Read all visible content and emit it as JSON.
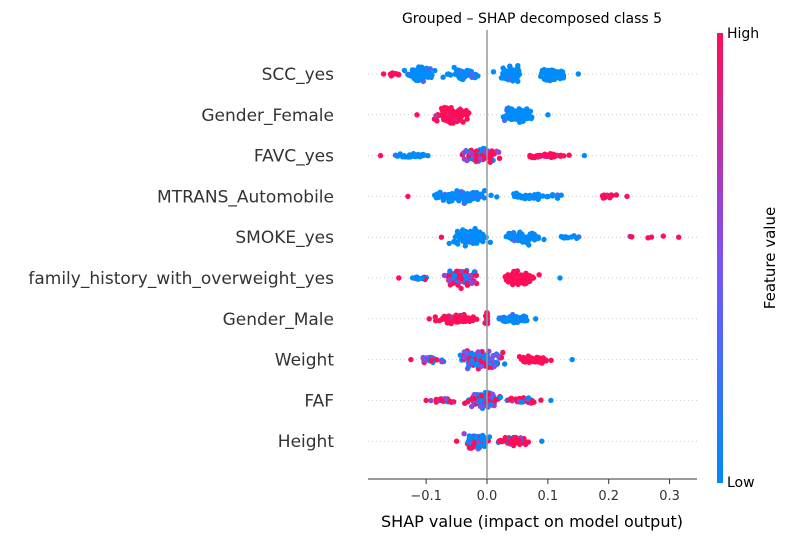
{
  "chart_data": {
    "type": "scatter",
    "title": "Grouped – SHAP decomposed class 5",
    "xlabel": "SHAP value (impact on model output)",
    "xlim": [
      -0.2,
      0.345
    ],
    "xticks": [
      {
        "value": -0.1,
        "label": "−0.1"
      },
      {
        "value": 0.0,
        "label": "0.0"
      },
      {
        "value": 0.1,
        "label": "0.1"
      },
      {
        "value": 0.2,
        "label": "0.2"
      },
      {
        "value": 0.3,
        "label": "0.3"
      }
    ],
    "colorbar": {
      "label": "Feature value",
      "high_label": "High",
      "low_label": "Low",
      "high_color": "#ff0d57",
      "low_color": "#008bfb"
    },
    "zero_line": true,
    "features": [
      {
        "name": "SCC_yes",
        "min": -0.17,
        "max": 0.15,
        "clusters": [
          {
            "center": -0.11,
            "width": 0.04,
            "count": 60,
            "color": "low",
            "spread": 13
          },
          {
            "center": -0.04,
            "width": 0.035,
            "count": 50,
            "color": "low",
            "spread": 12
          },
          {
            "center": 0.04,
            "width": 0.035,
            "count": 55,
            "color": "low",
            "spread": 14
          },
          {
            "center": 0.11,
            "width": 0.035,
            "count": 50,
            "color": "low",
            "spread": 12
          },
          {
            "center": -0.15,
            "width": 0.02,
            "count": 8,
            "color": "high",
            "spread": 4
          }
        ]
      },
      {
        "name": "Gender_Female",
        "min": -0.115,
        "max": 0.1,
        "clusters": [
          {
            "center": -0.06,
            "width": 0.045,
            "count": 110,
            "color": "high",
            "spread": 13
          },
          {
            "center": 0.05,
            "width": 0.04,
            "count": 90,
            "color": "low",
            "spread": 13
          }
        ]
      },
      {
        "name": "FAVC_yes",
        "min": -0.175,
        "max": 0.16,
        "clusters": [
          {
            "center": -0.01,
            "width": 0.05,
            "count": 90,
            "color": "mixhigh",
            "spread": 11
          },
          {
            "center": 0.1,
            "width": 0.05,
            "count": 45,
            "color": "high",
            "spread": 4
          },
          {
            "center": -0.12,
            "width": 0.05,
            "count": 25,
            "color": "low",
            "spread": 3
          }
        ]
      },
      {
        "name": "MTRANS_Automobile",
        "min": -0.13,
        "max": 0.23,
        "clusters": [
          {
            "center": -0.04,
            "width": 0.07,
            "count": 120,
            "color": "low",
            "spread": 9
          },
          {
            "center": 0.08,
            "width": 0.06,
            "count": 40,
            "color": "low",
            "spread": 5
          },
          {
            "center": 0.2,
            "width": 0.03,
            "count": 10,
            "color": "high",
            "spread": 4
          }
        ]
      },
      {
        "name": "SMOKE_yes",
        "min": -0.075,
        "max": 0.315,
        "clusters": [
          {
            "center": -0.03,
            "width": 0.045,
            "count": 110,
            "color": "low",
            "spread": 14
          },
          {
            "center": 0.06,
            "width": 0.05,
            "count": 60,
            "color": "low",
            "spread": 10
          },
          {
            "center": 0.14,
            "width": 0.05,
            "count": 12,
            "color": "low",
            "spread": 3
          },
          {
            "center": 0.26,
            "width": 0.05,
            "count": 5,
            "color": "high",
            "spread": 2
          }
        ]
      },
      {
        "name": "family_history_with_overweight_yes",
        "min": -0.145,
        "max": 0.12,
        "clusters": [
          {
            "center": -0.04,
            "width": 0.045,
            "count": 90,
            "color": "mixhigh",
            "spread": 14
          },
          {
            "center": 0.05,
            "width": 0.045,
            "count": 85,
            "color": "high",
            "spread": 12
          },
          {
            "center": -0.11,
            "width": 0.03,
            "count": 12,
            "color": "mix",
            "spread": 3
          }
        ]
      },
      {
        "name": "Gender_Male",
        "min": -0.095,
        "max": 0.08,
        "clusters": [
          {
            "center": -0.05,
            "width": 0.045,
            "count": 110,
            "color": "high",
            "spread": 7
          },
          {
            "center": 0.0,
            "width": 0.005,
            "count": 20,
            "color": "high",
            "spread": 15
          },
          {
            "center": 0.045,
            "width": 0.035,
            "count": 70,
            "color": "low",
            "spread": 7
          }
        ]
      },
      {
        "name": "Weight",
        "min": -0.125,
        "max": 0.14,
        "clusters": [
          {
            "center": -0.01,
            "width": 0.05,
            "count": 150,
            "color": "mix",
            "spread": 14
          },
          {
            "center": 0.08,
            "width": 0.05,
            "count": 50,
            "color": "high",
            "spread": 6
          },
          {
            "center": -0.09,
            "width": 0.03,
            "count": 20,
            "color": "mix",
            "spread": 4
          }
        ]
      },
      {
        "name": "FAF",
        "min": -0.1,
        "max": 0.105,
        "clusters": [
          {
            "center": -0.005,
            "width": 0.04,
            "count": 140,
            "color": "mix",
            "spread": 14
          },
          {
            "center": 0.06,
            "width": 0.04,
            "count": 35,
            "color": "mixhigh",
            "spread": 5
          },
          {
            "center": -0.07,
            "width": 0.03,
            "count": 25,
            "color": "mixhigh",
            "spread": 5
          }
        ]
      },
      {
        "name": "Height",
        "min": -0.05,
        "max": 0.09,
        "clusters": [
          {
            "center": -0.015,
            "width": 0.03,
            "count": 130,
            "color": "mix",
            "spread": 12
          },
          {
            "center": 0.045,
            "width": 0.04,
            "count": 70,
            "color": "mixhigh",
            "spread": 7
          }
        ]
      }
    ]
  }
}
